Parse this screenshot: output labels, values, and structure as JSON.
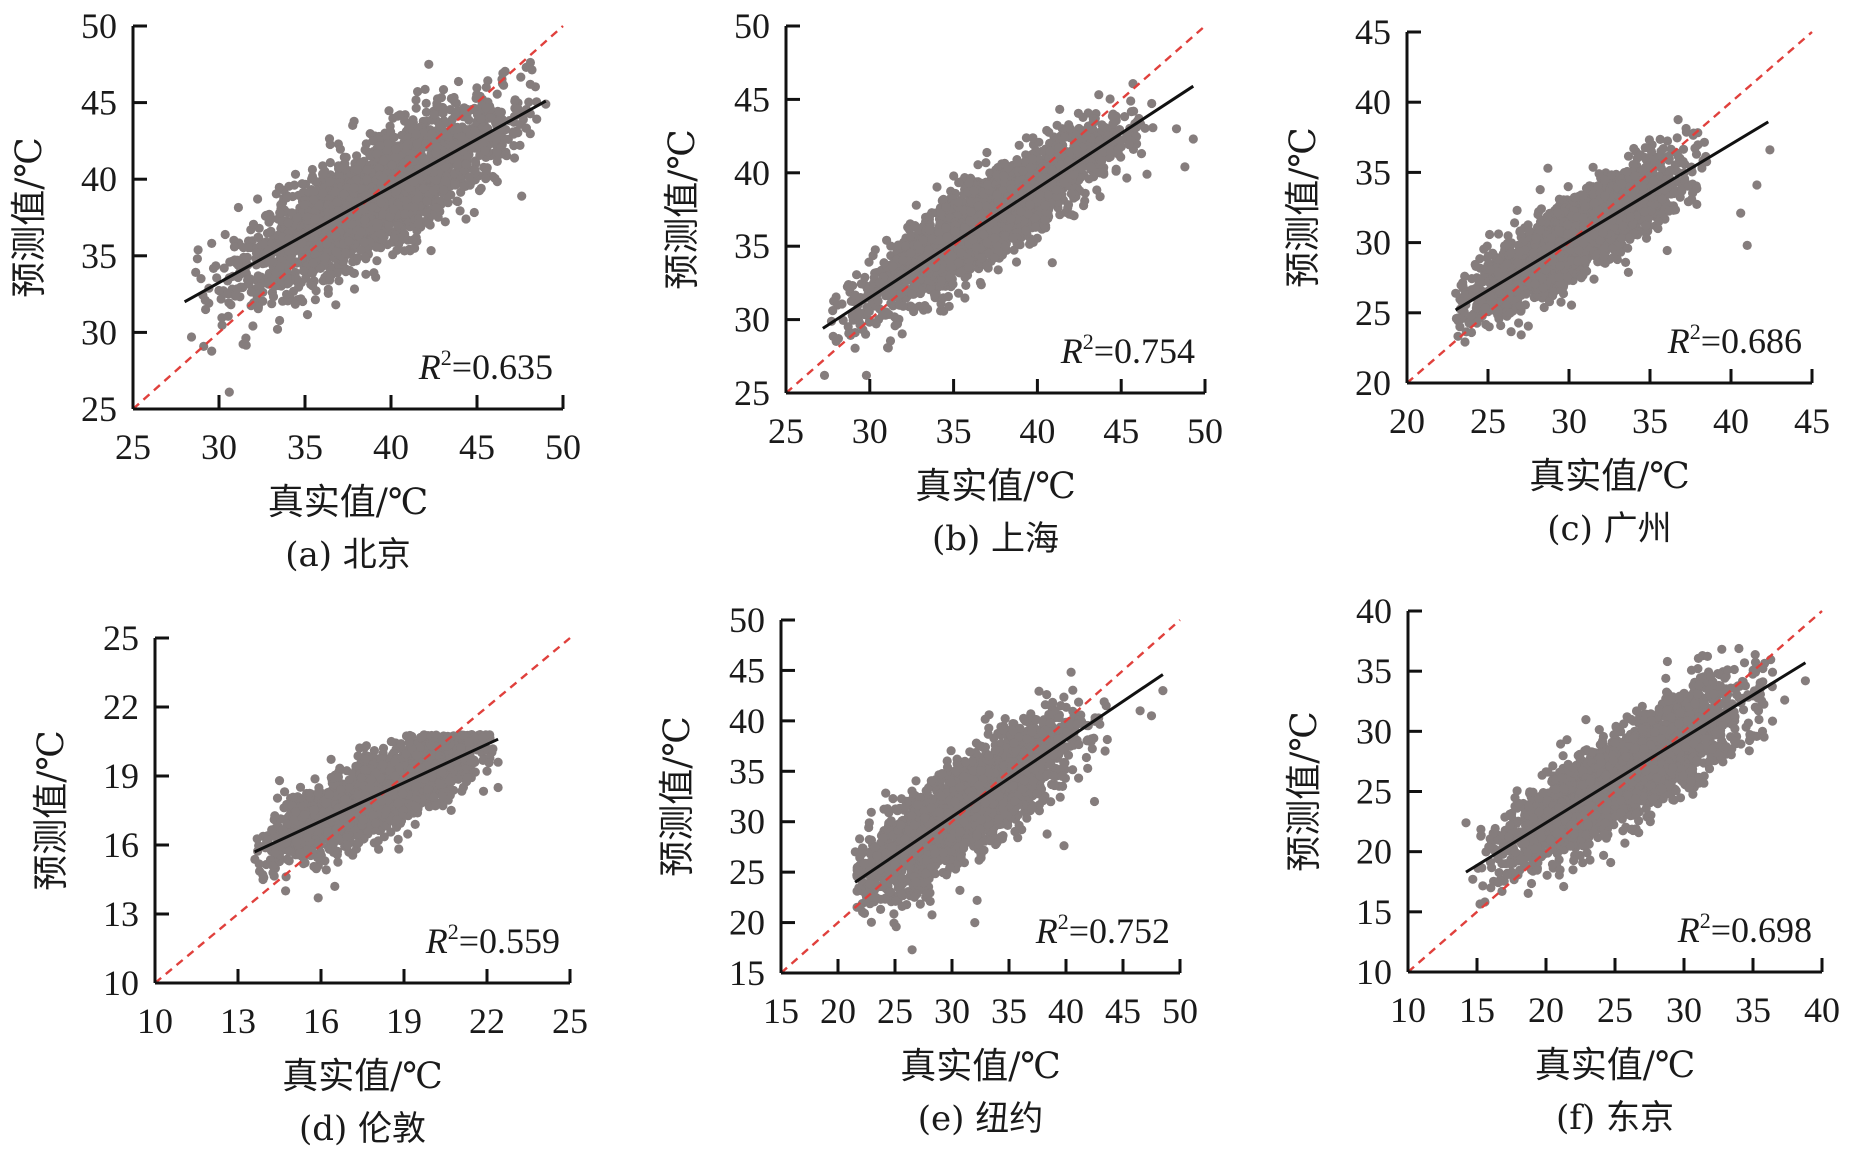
{
  "figure": {
    "colors": {
      "points": "#857d7d",
      "fit_line": "#111111",
      "identity_line": "#e0403c",
      "axis": "#111111"
    }
  },
  "chart_data": [
    {
      "type": "scatter",
      "id": "a",
      "caption": "(a) 北京",
      "xlabel": "真实值/℃",
      "ylabel": "预测值/℃",
      "xlim": [
        25,
        50
      ],
      "ylim": [
        25,
        50
      ],
      "xticks": [
        25,
        30,
        35,
        40,
        45,
        50
      ],
      "yticks": [
        25,
        30,
        35,
        40,
        45,
        50
      ],
      "r2_label": "R",
      "r2_value": "=0.635",
      "r2": 0.635,
      "fit_line": [
        [
          28.0,
          32.0
        ],
        [
          49.0,
          45.1
        ]
      ],
      "identity_line": [
        [
          25,
          25
        ],
        [
          50,
          50
        ]
      ],
      "cloud": {
        "x_range": [
          28.0,
          48.5
        ],
        "x_mean": 39.0,
        "x_sd": 3.8,
        "slope": 0.62,
        "intercept": 14.6,
        "resid_sd": 1.75,
        "n": 2600
      },
      "outliers": [
        [
          42.2,
          47.5
        ],
        [
          30.6,
          26.1
        ],
        [
          47.6,
          38.9
        ],
        [
          28.4,
          29.7
        ],
        [
          33.4,
          30.2
        ],
        [
          49.0,
          44.9
        ]
      ]
    },
    {
      "type": "scatter",
      "id": "b",
      "caption": "(b) 上海",
      "xlabel": "真实值/℃",
      "ylabel": "预测值/℃",
      "xlim": [
        25,
        50
      ],
      "ylim": [
        25,
        50
      ],
      "xticks": [
        25,
        30,
        35,
        40,
        45,
        50
      ],
      "yticks": [
        25,
        30,
        35,
        40,
        45,
        50
      ],
      "r2_label": "R",
      "r2_value": "=0.754",
      "r2": 0.754,
      "fit_line": [
        [
          27.2,
          29.4
        ],
        [
          49.3,
          45.9
        ]
      ],
      "identity_line": [
        [
          25,
          25
        ],
        [
          50,
          50
        ]
      ],
      "cloud": {
        "x_range": [
          27.2,
          47.0
        ],
        "x_mean": 37.0,
        "x_sd": 3.6,
        "slope": 0.75,
        "intercept": 9.0,
        "resid_sd": 1.45,
        "n": 2600
      },
      "outliers": [
        [
          49.3,
          42.3
        ],
        [
          48.3,
          43.0
        ],
        [
          48.8,
          40.4
        ],
        [
          29.8,
          26.2
        ],
        [
          27.3,
          26.2
        ],
        [
          31.0,
          35.4
        ]
      ]
    },
    {
      "type": "scatter",
      "id": "c",
      "caption": "(c) 广州",
      "xlabel": "真实值/℃",
      "ylabel": "预测值/℃",
      "xlim": [
        20,
        45
      ],
      "ylim": [
        20,
        45
      ],
      "xticks": [
        20,
        25,
        30,
        35,
        40,
        45
      ],
      "yticks": [
        20,
        25,
        30,
        35,
        40,
        45
      ],
      "r2_label": "R",
      "r2_value": "=0.686",
      "r2": 0.686,
      "fit_line": [
        [
          23.0,
          25.2
        ],
        [
          42.3,
          38.6
        ]
      ],
      "identity_line": [
        [
          20,
          20
        ],
        [
          45,
          45
        ]
      ],
      "cloud": {
        "x_range": [
          23.0,
          38.5
        ],
        "x_mean": 30.5,
        "x_sd": 3.2,
        "slope": 0.69,
        "intercept": 9.3,
        "resid_sd": 1.4,
        "n": 2600
      },
      "outliers": [
        [
          42.4,
          36.6
        ],
        [
          41.0,
          29.8
        ],
        [
          40.6,
          32.1
        ],
        [
          41.6,
          34.1
        ],
        [
          28.7,
          35.3
        ],
        [
          34.0,
          36.7
        ]
      ]
    },
    {
      "type": "scatter",
      "id": "d",
      "caption": "(d) 伦敦",
      "xlabel": "真实值/℃",
      "ylabel": "预测值/℃",
      "xlim": [
        10,
        25
      ],
      "ylim": [
        10,
        25
      ],
      "xticks": [
        10,
        13,
        16,
        19,
        22,
        25
      ],
      "yticks": [
        10,
        13,
        16,
        19,
        22,
        25
      ],
      "r2_label": "R",
      "r2_value": "=0.559",
      "r2": 0.559,
      "fit_line": [
        [
          13.6,
          15.7
        ],
        [
          22.4,
          20.6
        ]
      ],
      "identity_line": [
        [
          10,
          10
        ],
        [
          25,
          25
        ]
      ],
      "cloud": {
        "x_range": [
          13.6,
          22.3
        ],
        "x_mean": 18.0,
        "x_sd": 1.8,
        "slope": 0.56,
        "intercept": 8.1,
        "resid_sd": 0.75,
        "n": 2600,
        "y_cap": 20.8
      },
      "outliers": [
        [
          15.9,
          13.7
        ],
        [
          14.5,
          18.8
        ],
        [
          22.4,
          19.6
        ],
        [
          22.4,
          18.5
        ],
        [
          16.5,
          14.2
        ]
      ]
    },
    {
      "type": "scatter",
      "id": "e",
      "caption": "(e) 纽约",
      "xlabel": "真实值/℃",
      "ylabel": "预测值/℃",
      "xlim": [
        15,
        50
      ],
      "ylim": [
        15,
        50
      ],
      "xticks": [
        15,
        20,
        25,
        30,
        35,
        40,
        45,
        50
      ],
      "yticks": [
        15,
        20,
        25,
        30,
        35,
        40,
        45,
        50
      ],
      "r2_label": "R",
      "r2_value": "=0.752",
      "r2": 0.752,
      "fit_line": [
        [
          21.5,
          24.0
        ],
        [
          48.5,
          44.6
        ]
      ],
      "identity_line": [
        [
          15,
          15
        ],
        [
          50,
          50
        ]
      ],
      "cloud": {
        "x_range": [
          21.5,
          44.0
        ],
        "x_mean": 31.0,
        "x_sd": 4.6,
        "slope": 0.76,
        "intercept": 7.6,
        "resid_sd": 2.3,
        "n": 2800
      },
      "outliers": [
        [
          48.5,
          43.0
        ],
        [
          46.5,
          41.0
        ],
        [
          47.5,
          40.5
        ],
        [
          26.5,
          17.3
        ],
        [
          32.0,
          20.0
        ],
        [
          32.2,
          22.2
        ],
        [
          42.5,
          32.0
        ]
      ]
    },
    {
      "type": "scatter",
      "id": "f",
      "caption": "(f) 东京",
      "xlabel": "真实值/℃",
      "ylabel": "预测值/℃",
      "xlim": [
        10,
        40
      ],
      "ylim": [
        10,
        40
      ],
      "xticks": [
        10,
        15,
        20,
        25,
        30,
        35,
        40
      ],
      "yticks": [
        10,
        15,
        20,
        25,
        30,
        35,
        40
      ],
      "r2_label": "R",
      "r2_value": "=0.698",
      "r2": 0.698,
      "fit_line": [
        [
          14.2,
          18.3
        ],
        [
          38.8,
          35.7
        ]
      ],
      "identity_line": [
        [
          10,
          10
        ],
        [
          40,
          40
        ]
      ],
      "cloud": {
        "x_range": [
          14.5,
          36.5
        ],
        "x_mean": 25.5,
        "x_sd": 4.2,
        "slope": 0.71,
        "intercept": 8.2,
        "resid_sd": 1.9,
        "n": 2800
      },
      "outliers": [
        [
          38.8,
          34.2
        ],
        [
          28.8,
          35.8
        ],
        [
          14.2,
          22.4
        ],
        [
          16.0,
          17.0
        ],
        [
          37.3,
          32.6
        ]
      ]
    }
  ]
}
